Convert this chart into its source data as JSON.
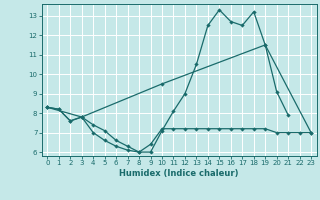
{
  "xlabel": "Humidex (Indice chaleur)",
  "xlim": [
    -0.5,
    23.5
  ],
  "ylim": [
    5.8,
    13.6
  ],
  "yticks": [
    6,
    7,
    8,
    9,
    10,
    11,
    12,
    13
  ],
  "xticks": [
    0,
    1,
    2,
    3,
    4,
    5,
    6,
    7,
    8,
    9,
    10,
    11,
    12,
    13,
    14,
    15,
    16,
    17,
    18,
    19,
    20,
    21,
    22,
    23
  ],
  "bg_color": "#c5e8e8",
  "line_color": "#1a6b6b",
  "grid_color": "#b0d8d8",
  "line1_x": [
    0,
    1,
    2,
    3,
    4,
    5,
    6,
    7,
    8,
    9,
    10,
    11,
    12,
    13,
    14,
    15,
    16,
    17,
    18,
    19,
    20,
    21
  ],
  "line1_y": [
    8.3,
    8.2,
    7.6,
    7.8,
    7.0,
    6.6,
    6.3,
    6.1,
    6.0,
    6.0,
    7.1,
    8.1,
    9.0,
    10.5,
    12.5,
    13.3,
    12.7,
    12.5,
    13.2,
    11.5,
    9.1,
    7.9
  ],
  "line2_x": [
    0,
    1,
    2,
    3,
    4,
    5,
    6,
    7,
    8,
    9,
    10,
    11,
    12,
    13,
    14,
    15,
    16,
    17,
    18,
    19,
    20,
    21,
    22,
    23
  ],
  "line2_y": [
    8.3,
    8.2,
    7.6,
    7.8,
    7.4,
    7.1,
    6.6,
    6.3,
    6.0,
    6.4,
    7.2,
    7.2,
    7.2,
    7.2,
    7.2,
    7.2,
    7.2,
    7.2,
    7.2,
    7.2,
    7.0,
    7.0,
    7.0,
    7.0
  ],
  "line3_x": [
    0,
    3,
    10,
    19,
    23
  ],
  "line3_y": [
    8.3,
    7.8,
    9.5,
    11.5,
    7.0
  ]
}
